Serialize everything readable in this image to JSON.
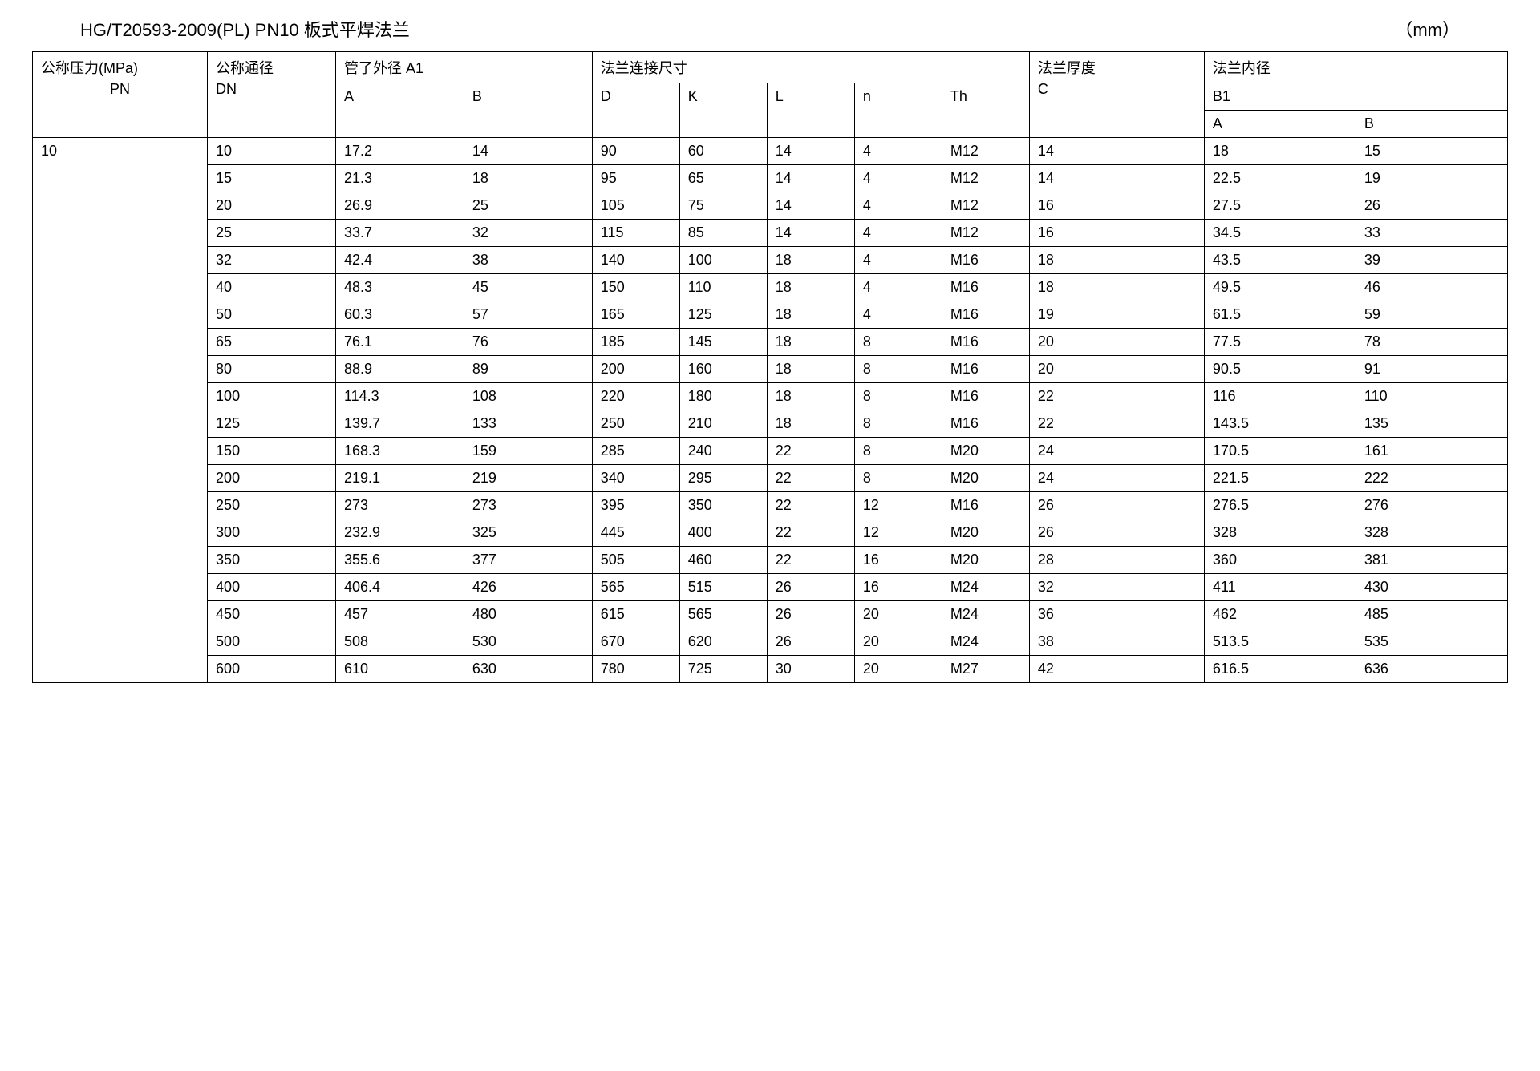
{
  "title": "HG/T20593-2009(PL)    PN10 板式平焊法兰",
  "unit": "（mm）",
  "headers": {
    "pn_line1": "公称压力(MPa)",
    "pn_line2": "PN",
    "dn_line1": "公称通径",
    "dn_line2": "DN",
    "a1_group": "管了外径 A1",
    "a1_a": "A",
    "a1_b": "B",
    "conn_group": "法兰连接尺寸",
    "d": "D",
    "k": "K",
    "l": "L",
    "n": "n",
    "th": "Th",
    "c_line1": "法兰厚度",
    "c_line2": "C",
    "b1_group": "法兰内径",
    "b1_line2": "B1",
    "b1_a": "A",
    "b1_b": "B"
  },
  "pn_value": "10",
  "rows": [
    {
      "dn": "10",
      "a": "17.2",
      "b": "14",
      "d": "90",
      "k": "60",
      "l": "14",
      "n": "4",
      "th": "M12",
      "c": "14",
      "b1a": "18",
      "b1b": "15"
    },
    {
      "dn": "15",
      "a": "21.3",
      "b": "18",
      "d": "95",
      "k": "65",
      "l": "14",
      "n": "4",
      "th": "M12",
      "c": "14",
      "b1a": "22.5",
      "b1b": "19"
    },
    {
      "dn": "20",
      "a": "26.9",
      "b": "25",
      "d": "105",
      "k": "75",
      "l": "14",
      "n": "4",
      "th": "M12",
      "c": "16",
      "b1a": "27.5",
      "b1b": "26"
    },
    {
      "dn": "25",
      "a": "33.7",
      "b": "32",
      "d": "115",
      "k": "85",
      "l": "14",
      "n": "4",
      "th": "M12",
      "c": "16",
      "b1a": "34.5",
      "b1b": "33"
    },
    {
      "dn": "32",
      "a": "42.4",
      "b": "38",
      "d": "140",
      "k": "100",
      "l": "18",
      "n": "4",
      "th": "M16",
      "c": "18",
      "b1a": "43.5",
      "b1b": "39"
    },
    {
      "dn": "40",
      "a": "48.3",
      "b": "45",
      "d": "150",
      "k": "110",
      "l": "18",
      "n": "4",
      "th": "M16",
      "c": "18",
      "b1a": "49.5",
      "b1b": "46"
    },
    {
      "dn": "50",
      "a": "60.3",
      "b": "57",
      "d": "165",
      "k": "125",
      "l": "18",
      "n": "4",
      "th": "M16",
      "c": "19",
      "b1a": "61.5",
      "b1b": "59"
    },
    {
      "dn": "65",
      "a": "76.1",
      "b": "76",
      "d": "185",
      "k": "145",
      "l": "18",
      "n": "8",
      "th": "M16",
      "c": "20",
      "b1a": "77.5",
      "b1b": "78"
    },
    {
      "dn": "80",
      "a": "88.9",
      "b": "89",
      "d": "200",
      "k": "160",
      "l": "18",
      "n": "8",
      "th": "M16",
      "c": "20",
      "b1a": "90.5",
      "b1b": "91"
    },
    {
      "dn": "100",
      "a": "114.3",
      "b": "108",
      "d": "220",
      "k": "180",
      "l": "18",
      "n": "8",
      "th": "M16",
      "c": "22",
      "b1a": "116",
      "b1b": "110"
    },
    {
      "dn": "125",
      "a": "139.7",
      "b": "133",
      "d": "250",
      "k": "210",
      "l": "18",
      "n": "8",
      "th": "M16",
      "c": "22",
      "b1a": "143.5",
      "b1b": "135"
    },
    {
      "dn": "150",
      "a": "168.3",
      "b": "159",
      "d": "285",
      "k": "240",
      "l": "22",
      "n": "8",
      "th": "M20",
      "c": "24",
      "b1a": "170.5",
      "b1b": "161"
    },
    {
      "dn": "200",
      "a": "219.1",
      "b": "219",
      "d": "340",
      "k": "295",
      "l": "22",
      "n": "8",
      "th": "M20",
      "c": "24",
      "b1a": "221.5",
      "b1b": "222"
    },
    {
      "dn": "250",
      "a": "273",
      "b": "273",
      "d": "395",
      "k": "350",
      "l": "22",
      "n": "12",
      "th": "M16",
      "c": "26",
      "b1a": "276.5",
      "b1b": "276"
    },
    {
      "dn": "300",
      "a": "232.9",
      "b": "325",
      "d": "445",
      "k": "400",
      "l": "22",
      "n": "12",
      "th": "M20",
      "c": "26",
      "b1a": "328",
      "b1b": "328"
    },
    {
      "dn": "350",
      "a": "355.6",
      "b": "377",
      "d": "505",
      "k": "460",
      "l": "22",
      "n": "16",
      "th": "M20",
      "c": "28",
      "b1a": "360",
      "b1b": "381"
    },
    {
      "dn": "400",
      "a": "406.4",
      "b": "426",
      "d": "565",
      "k": "515",
      "l": "26",
      "n": "16",
      "th": "M24",
      "c": "32",
      "b1a": "411",
      "b1b": "430"
    },
    {
      "dn": "450",
      "a": "457",
      "b": "480",
      "d": "615",
      "k": "565",
      "l": "26",
      "n": "20",
      "th": "M24",
      "c": "36",
      "b1a": "462",
      "b1b": "485"
    },
    {
      "dn": "500",
      "a": "508",
      "b": "530",
      "d": "670",
      "k": "620",
      "l": "26",
      "n": "20",
      "th": "M24",
      "c": "38",
      "b1a": "513.5",
      "b1b": "535"
    },
    {
      "dn": "600",
      "a": "610",
      "b": "630",
      "d": "780",
      "k": "725",
      "l": "30",
      "n": "20",
      "th": "M27",
      "c": "42",
      "b1a": "616.5",
      "b1b": "636"
    }
  ]
}
